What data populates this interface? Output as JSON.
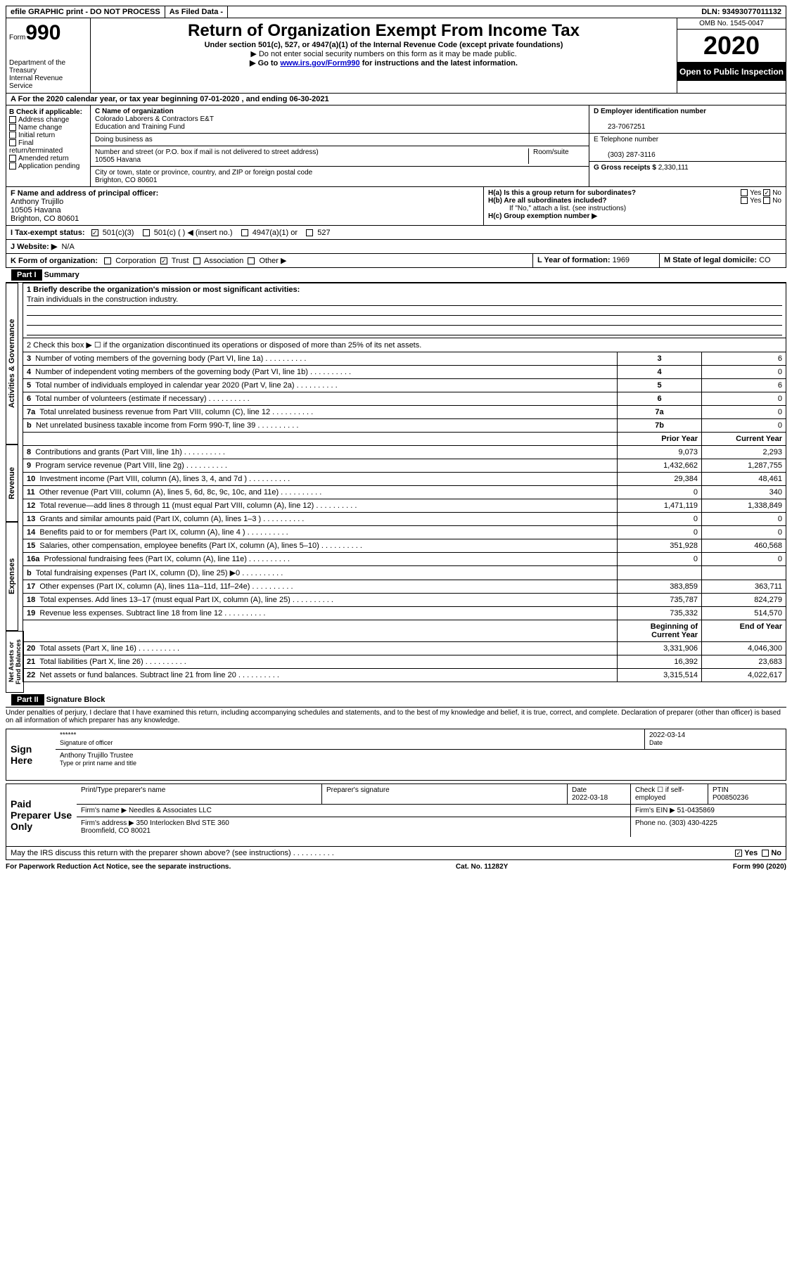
{
  "topbar": {
    "efile": "efile GRAPHIC print - DO NOT PROCESS",
    "asfiled": "As Filed Data -",
    "dln_label": "DLN:",
    "dln": "93493077011132"
  },
  "header": {
    "form_label": "Form",
    "form_number": "990",
    "dept": "Department of the Treasury\nInternal Revenue Service",
    "title": "Return of Organization Exempt From Income Tax",
    "subtitle": "Under section 501(c), 527, or 4947(a)(1) of the Internal Revenue Code (except private foundations)",
    "note1": "▶ Do not enter social security numbers on this form as it may be made public.",
    "note2": "▶ Go to ",
    "link": "www.irs.gov/Form990",
    "note2b": " for instructions and the latest information.",
    "omb": "OMB No. 1545-0047",
    "year": "2020",
    "open": "Open to Public Inspection"
  },
  "row_a": "A  For the 2020 calendar year, or tax year beginning 07-01-2020   , and ending 06-30-2021",
  "col_b": {
    "label": "B Check if applicable:",
    "items": [
      "Address change",
      "Name change",
      "Initial return",
      "Final return/terminated",
      "Amended return",
      "Application pending"
    ]
  },
  "col_c": {
    "name_label": "C Name of organization",
    "name": "Colorado Laborers & Contractors E&T\nEducation and Training Fund",
    "dba_label": "Doing business as",
    "dba": "",
    "street_label": "Number and street (or P.O. box if mail is not delivered to street address)",
    "street": "10505 Havana",
    "room_label": "Room/suite",
    "city_label": "City or town, state or province, country, and ZIP or foreign postal code",
    "city": "Brighton, CO  80601"
  },
  "col_d": {
    "ein_label": "D Employer identification number",
    "ein": "23-7067251",
    "phone_label": "E Telephone number",
    "phone": "(303) 287-3116",
    "gross_label": "G Gross receipts $",
    "gross": "2,330,111"
  },
  "row_f": {
    "label": "F  Name and address of principal officer:",
    "name": "Anthony Trujillo",
    "street": "10505 Havana",
    "city": "Brighton, CO  80601"
  },
  "row_h": {
    "ha_label": "H(a)  Is this a group return for subordinates?",
    "ha_yes": "Yes",
    "ha_no": "No",
    "hb_label": "H(b)  Are all subordinates included?",
    "hb_yes": "Yes",
    "hb_no": "No",
    "hb_note": "If \"No,\" attach a list. (see instructions)",
    "hc_label": "H(c)  Group exemption number ▶"
  },
  "row_i": {
    "label": "I   Tax-exempt status:",
    "opt1": "501(c)(3)",
    "opt2": "501(c) (  ) ◀ (insert no.)",
    "opt3": "4947(a)(1) or",
    "opt4": "527"
  },
  "row_j": {
    "label": "J   Website: ▶",
    "value": "N/A"
  },
  "row_k": {
    "label": "K Form of organization:",
    "corp": "Corporation",
    "trust": "Trust",
    "assoc": "Association",
    "other": "Other ▶"
  },
  "row_lm": {
    "l_label": "L Year of formation:",
    "l_val": "1969",
    "m_label": "M State of legal domicile:",
    "m_val": "CO"
  },
  "part1": {
    "header": "Part I",
    "title": "Summary",
    "mission_label": "1 Briefly describe the organization's mission or most significant activities:",
    "mission": "Train individuals in the construction industry.",
    "line2": "2   Check this box ▶ ☐ if the organization discontinued its operations or disposed of more than 25% of its net assets.",
    "labels": {
      "activities": "Activities & Governance",
      "revenue": "Revenue",
      "expenses": "Expenses",
      "netassets": "Net Assets or Fund Balances"
    },
    "rows_simple": [
      {
        "n": "3",
        "text": "Number of voting members of the governing body (Part VI, line 1a)",
        "box": "3",
        "val": "6"
      },
      {
        "n": "4",
        "text": "Number of independent voting members of the governing body (Part VI, line 1b)",
        "box": "4",
        "val": "0"
      },
      {
        "n": "5",
        "text": "Total number of individuals employed in calendar year 2020 (Part V, line 2a)",
        "box": "5",
        "val": "6"
      },
      {
        "n": "6",
        "text": "Total number of volunteers (estimate if necessary)",
        "box": "6",
        "val": "0"
      },
      {
        "n": "7a",
        "text": "Total unrelated business revenue from Part VIII, column (C), line 12",
        "box": "7a",
        "val": "0"
      },
      {
        "n": "b",
        "text": "Net unrelated business taxable income from Form 990-T, line 39",
        "box": "7b",
        "val": "0"
      }
    ],
    "col_headers": {
      "prior": "Prior Year",
      "current": "Current Year",
      "begin": "Beginning of Current Year",
      "end": "End of Year"
    },
    "rows_two": [
      {
        "n": "8",
        "text": "Contributions and grants (Part VIII, line 1h)",
        "p": "9,073",
        "c": "2,293"
      },
      {
        "n": "9",
        "text": "Program service revenue (Part VIII, line 2g)",
        "p": "1,432,662",
        "c": "1,287,755"
      },
      {
        "n": "10",
        "text": "Investment income (Part VIII, column (A), lines 3, 4, and 7d )",
        "p": "29,384",
        "c": "48,461"
      },
      {
        "n": "11",
        "text": "Other revenue (Part VIII, column (A), lines 5, 6d, 8c, 9c, 10c, and 11e)",
        "p": "0",
        "c": "340"
      },
      {
        "n": "12",
        "text": "Total revenue—add lines 8 through 11 (must equal Part VIII, column (A), line 12)",
        "p": "1,471,119",
        "c": "1,338,849"
      },
      {
        "n": "13",
        "text": "Grants and similar amounts paid (Part IX, column (A), lines 1–3 )",
        "p": "0",
        "c": "0"
      },
      {
        "n": "14",
        "text": "Benefits paid to or for members (Part IX, column (A), line 4 )",
        "p": "0",
        "c": "0"
      },
      {
        "n": "15",
        "text": "Salaries, other compensation, employee benefits (Part IX, column (A), lines 5–10)",
        "p": "351,928",
        "c": "460,568"
      },
      {
        "n": "16a",
        "text": "Professional fundraising fees (Part IX, column (A), line 11e)",
        "p": "0",
        "c": "0"
      },
      {
        "n": "b",
        "text": "Total fundraising expenses (Part IX, column (D), line 25) ▶0",
        "p": "",
        "c": ""
      },
      {
        "n": "17",
        "text": "Other expenses (Part IX, column (A), lines 11a–11d, 11f–24e)",
        "p": "383,859",
        "c": "363,711"
      },
      {
        "n": "18",
        "text": "Total expenses. Add lines 13–17 (must equal Part IX, column (A), line 25)",
        "p": "735,787",
        "c": "824,279"
      },
      {
        "n": "19",
        "text": "Revenue less expenses. Subtract line 18 from line 12",
        "p": "735,332",
        "c": "514,570"
      }
    ],
    "rows_assets": [
      {
        "n": "20",
        "text": "Total assets (Part X, line 16)",
        "p": "3,331,906",
        "c": "4,046,300"
      },
      {
        "n": "21",
        "text": "Total liabilities (Part X, line 26)",
        "p": "16,392",
        "c": "23,683"
      },
      {
        "n": "22",
        "text": "Net assets or fund balances. Subtract line 21 from line 20",
        "p": "3,315,514",
        "c": "4,022,617"
      }
    ]
  },
  "part2": {
    "header": "Part II",
    "title": "Signature Block",
    "declaration": "Under penalties of perjury, I declare that I have examined this return, including accompanying schedules and statements, and to the best of my knowledge and belief, it is true, correct, and complete. Declaration of preparer (other than officer) is based on all information of which preparer has any knowledge.",
    "sign_here": "Sign Here",
    "sig_stars": "******",
    "sig_date": "2022-03-14",
    "sig_officer_label": "Signature of officer",
    "sig_date_label": "Date",
    "sig_name": "Anthony Trujillo Trustee",
    "sig_name_label": "Type or print name and title",
    "paid": "Paid Preparer Use Only",
    "prep_name_label": "Print/Type preparer's name",
    "prep_sig_label": "Preparer's signature",
    "prep_date_label": "Date",
    "prep_date": "2022-03-18",
    "prep_check": "Check ☐ if self-employed",
    "ptin_label": "PTIN",
    "ptin": "P00850236",
    "firm_name_label": "Firm's name    ▶",
    "firm_name": "Needles & Associates LLC",
    "firm_ein_label": "Firm's EIN ▶",
    "firm_ein": "51-0435869",
    "firm_addr_label": "Firm's address ▶",
    "firm_addr": "350 Interlocken Blvd STE 360\nBroomfield, CO  80021",
    "firm_phone_label": "Phone no.",
    "firm_phone": "(303) 430-4225",
    "discuss": "May the IRS discuss this return with the preparer shown above? (see instructions)",
    "yes": "Yes",
    "no": "No"
  },
  "footer": {
    "paperwork": "For Paperwork Reduction Act Notice, see the separate instructions.",
    "cat": "Cat. No. 11282Y",
    "form": "Form 990 (2020)"
  }
}
